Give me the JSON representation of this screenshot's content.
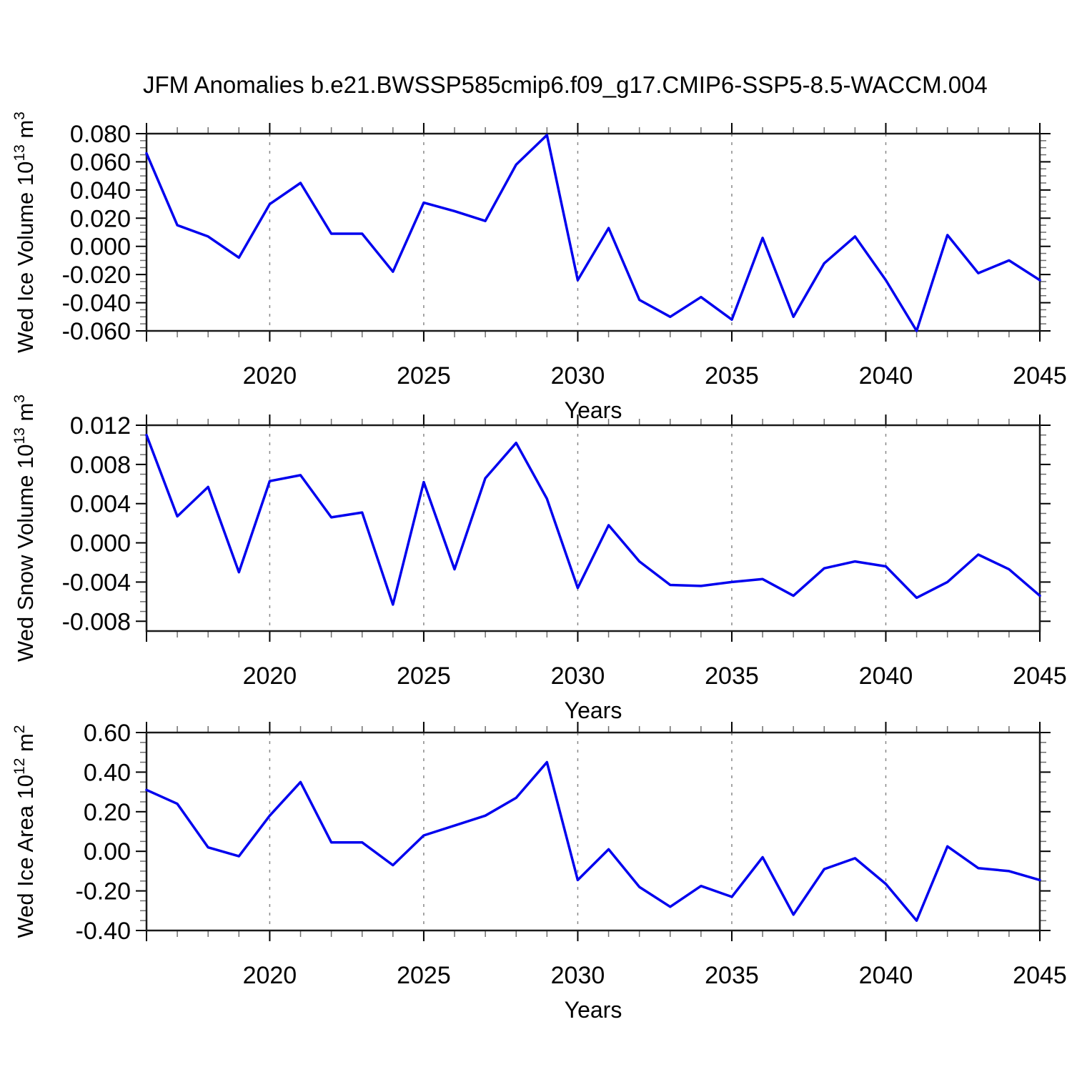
{
  "title": "JFM Anomalies b.e21.BWSSP585cmip6.f09_g17.CMIP6-SSP5-8.5-WACCM.004",
  "chart_data": [
    {
      "type": "line",
      "name": "wed-ice-volume",
      "ylabel": "Wed Ice Volume 10^13 m^3",
      "ylabel_parts": [
        {
          "text": "Wed Ice Volume 10"
        },
        {
          "text": "13",
          "sup": true
        },
        {
          "text": " m"
        },
        {
          "text": "3",
          "sup": true
        }
      ],
      "xlabel": "Years",
      "xlim": [
        2016,
        2045
      ],
      "ylim": [
        -0.06,
        0.08
      ],
      "x": [
        2016,
        2017,
        2018,
        2019,
        2020,
        2021,
        2022,
        2023,
        2024,
        2025,
        2026,
        2027,
        2028,
        2029,
        2030,
        2031,
        2032,
        2033,
        2034,
        2035,
        2036,
        2037,
        2038,
        2039,
        2040,
        2041,
        2042,
        2043,
        2044,
        2045
      ],
      "values": [
        0.066,
        0.015,
        0.007,
        -0.008,
        0.03,
        0.045,
        0.009,
        0.009,
        -0.018,
        0.031,
        0.025,
        0.018,
        0.058,
        0.079,
        -0.024,
        0.013,
        -0.038,
        -0.05,
        -0.036,
        -0.052,
        0.006,
        -0.05,
        -0.012,
        0.007,
        -0.024,
        -0.06,
        0.008,
        -0.019,
        -0.01,
        -0.024
      ],
      "ytick_vals": [
        0.08,
        0.06,
        0.04,
        0.02,
        0.0,
        -0.02,
        -0.04,
        -0.06
      ],
      "ytick_labels": [
        "0.080",
        "0.060",
        "0.040",
        "0.020",
        "0.000",
        "-0.020",
        "-0.040",
        "-0.060"
      ],
      "yminor_step": 0.005,
      "xtick_major": [
        2016,
        2020,
        2025,
        2030,
        2035,
        2040,
        2045
      ],
      "xtick_labeled": [
        {
          "value": 2020,
          "label": "2020"
        },
        {
          "value": 2025,
          "label": "2025"
        },
        {
          "value": 2030,
          "label": "2030"
        },
        {
          "value": 2035,
          "label": "2035"
        },
        {
          "value": 2040,
          "label": "2040"
        },
        {
          "value": 2045,
          "label": "2045"
        }
      ],
      "grid_years": [
        2020,
        2025,
        2030,
        2035,
        2040
      ],
      "line_color": "#0000ee"
    },
    {
      "type": "line",
      "name": "wed-snow-volume",
      "ylabel": "Wed Snow Volume 10^13 m^3",
      "ylabel_parts": [
        {
          "text": "Wed Snow Volume 10"
        },
        {
          "text": "13",
          "sup": true
        },
        {
          "text": " m"
        },
        {
          "text": "3",
          "sup": true
        }
      ],
      "xlabel": "Years",
      "xlim": [
        2016,
        2045
      ],
      "ylim": [
        -0.009,
        0.012
      ],
      "x": [
        2016,
        2017,
        2018,
        2019,
        2020,
        2021,
        2022,
        2023,
        2024,
        2025,
        2026,
        2027,
        2028,
        2029,
        2030,
        2031,
        2032,
        2033,
        2034,
        2035,
        2036,
        2037,
        2038,
        2039,
        2040,
        2041,
        2042,
        2043,
        2044,
        2045
      ],
      "values": [
        0.011,
        0.0027,
        0.0057,
        -0.003,
        0.0063,
        0.0069,
        0.0026,
        0.0031,
        -0.0063,
        0.0062,
        -0.0027,
        0.0066,
        0.0102,
        0.0045,
        -0.0046,
        0.0018,
        -0.0019,
        -0.0043,
        -0.0044,
        -0.004,
        -0.0037,
        -0.0054,
        -0.0026,
        -0.0019,
        -0.0024,
        -0.0056,
        -0.004,
        -0.0012,
        -0.0027,
        -0.0054
      ],
      "ytick_vals": [
        0.012,
        0.008,
        0.004,
        0.0,
        -0.004,
        -0.008
      ],
      "ytick_labels": [
        "0.012",
        "0.008",
        "0.004",
        "0.000",
        "-0.004",
        "-0.008"
      ],
      "yminor_step": 0.001,
      "xtick_major": [
        2016,
        2020,
        2025,
        2030,
        2035,
        2040,
        2045
      ],
      "xtick_labeled": [
        {
          "value": 2020,
          "label": "2020"
        },
        {
          "value": 2025,
          "label": "2025"
        },
        {
          "value": 2030,
          "label": "2030"
        },
        {
          "value": 2035,
          "label": "2035"
        },
        {
          "value": 2040,
          "label": "2040"
        },
        {
          "value": 2045,
          "label": "2045"
        }
      ],
      "grid_years": [
        2020,
        2025,
        2030,
        2035,
        2040
      ],
      "line_color": "#0000ee"
    },
    {
      "type": "line",
      "name": "wed-ice-area",
      "ylabel": "Wed Ice Area 10^12 m^2",
      "ylabel_parts": [
        {
          "text": "Wed Ice Area 10"
        },
        {
          "text": "12",
          "sup": true
        },
        {
          "text": " m"
        },
        {
          "text": "2",
          "sup": true
        }
      ],
      "xlabel": "Years",
      "xlim": [
        2016,
        2045
      ],
      "ylim": [
        -0.4,
        0.6
      ],
      "x": [
        2016,
        2017,
        2018,
        2019,
        2020,
        2021,
        2022,
        2023,
        2024,
        2025,
        2026,
        2027,
        2028,
        2029,
        2030,
        2031,
        2032,
        2033,
        2034,
        2035,
        2036,
        2037,
        2038,
        2039,
        2040,
        2041,
        2042,
        2043,
        2044,
        2045
      ],
      "values": [
        0.31,
        0.24,
        0.02,
        -0.025,
        0.18,
        0.35,
        0.045,
        0.045,
        -0.07,
        0.08,
        0.13,
        0.18,
        0.27,
        0.45,
        -0.145,
        0.01,
        -0.18,
        -0.28,
        -0.175,
        -0.23,
        -0.03,
        -0.32,
        -0.09,
        -0.035,
        -0.165,
        -0.35,
        0.025,
        -0.085,
        -0.1,
        -0.145
      ],
      "ytick_vals": [
        0.6,
        0.4,
        0.2,
        0.0,
        -0.2,
        -0.4
      ],
      "ytick_labels": [
        "0.60",
        "0.40",
        "0.20",
        "0.00",
        "-0.20",
        "-0.40"
      ],
      "yminor_step": 0.05,
      "xtick_major": [
        2016,
        2020,
        2025,
        2030,
        2035,
        2040,
        2045
      ],
      "xtick_labeled": [
        {
          "value": 2020,
          "label": "2020"
        },
        {
          "value": 2025,
          "label": "2025"
        },
        {
          "value": 2030,
          "label": "2030"
        },
        {
          "value": 2035,
          "label": "2035"
        },
        {
          "value": 2040,
          "label": "2040"
        },
        {
          "value": 2045,
          "label": "2045"
        }
      ],
      "grid_years": [
        2020,
        2025,
        2030,
        2035,
        2040
      ],
      "line_color": "#0000ee"
    }
  ]
}
